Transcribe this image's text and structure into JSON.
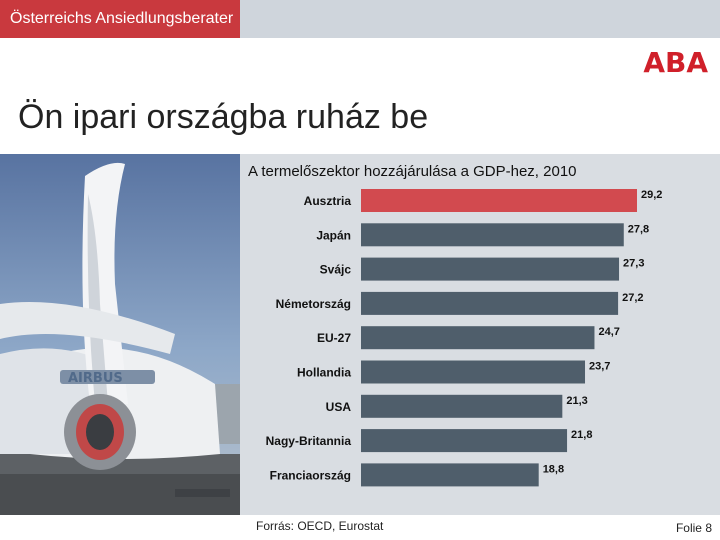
{
  "header": {
    "brand": "Österreichs Ansiedlungsberater",
    "logo": "ABA"
  },
  "title": "Ön ipari országba ruház be",
  "colors": {
    "highlight": "#d24a4f",
    "bar": "#4f5e6b",
    "brand": "#c9393e",
    "panel": "#d9dde2"
  },
  "chart_data": {
    "type": "bar",
    "orientation": "horizontal",
    "title": "A termelőszektor hozzájárulása a GDP-hez, 2010",
    "categories": [
      "Ausztria",
      "Japán",
      "Svájc",
      "Németország",
      "EU-27",
      "Hollandia",
      "USA",
      "Nagy-Britannia",
      "Franciaország"
    ],
    "values": [
      29.2,
      27.8,
      27.3,
      27.2,
      24.7,
      23.7,
      21.3,
      21.8,
      18.8
    ],
    "value_labels": [
      "29,2",
      "27,8",
      "27,3",
      "27,2",
      "24,7",
      "23,7",
      "21,3",
      "21,8",
      "18,8"
    ],
    "highlight_index": 0,
    "xlim": [
      0,
      29.2
    ],
    "grid": false
  },
  "footer": {
    "source": "Forrás: OECD, Eurostat",
    "folio": "Folie 8"
  }
}
